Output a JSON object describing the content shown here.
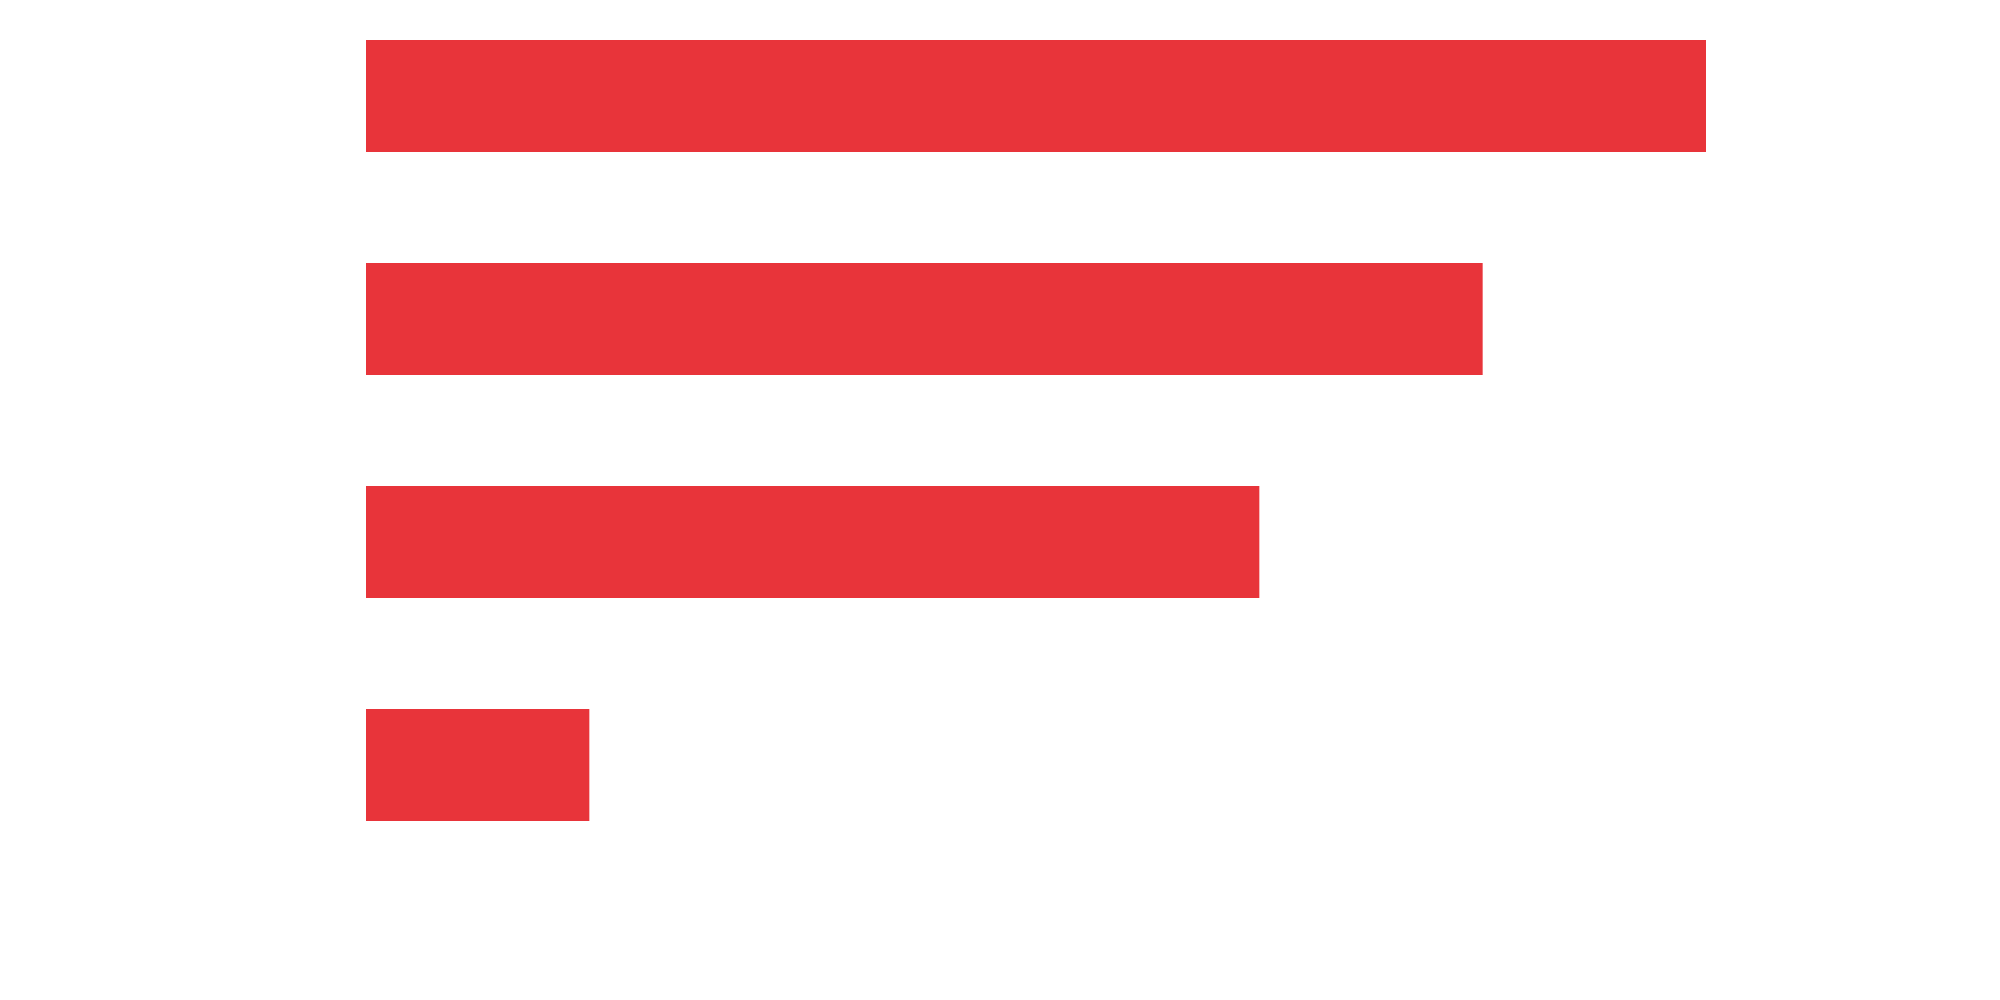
{
  "chart_data": {
    "type": "bar",
    "orientation": "horizontal",
    "categories": [
      "",
      "",
      "",
      ""
    ],
    "values": [
      6,
      5,
      4,
      1
    ],
    "xlim": [
      0,
      6
    ],
    "grid": false,
    "legend": "none",
    "bar_color": "#E8343A",
    "title": "",
    "xlabel": "",
    "ylabel": ""
  }
}
